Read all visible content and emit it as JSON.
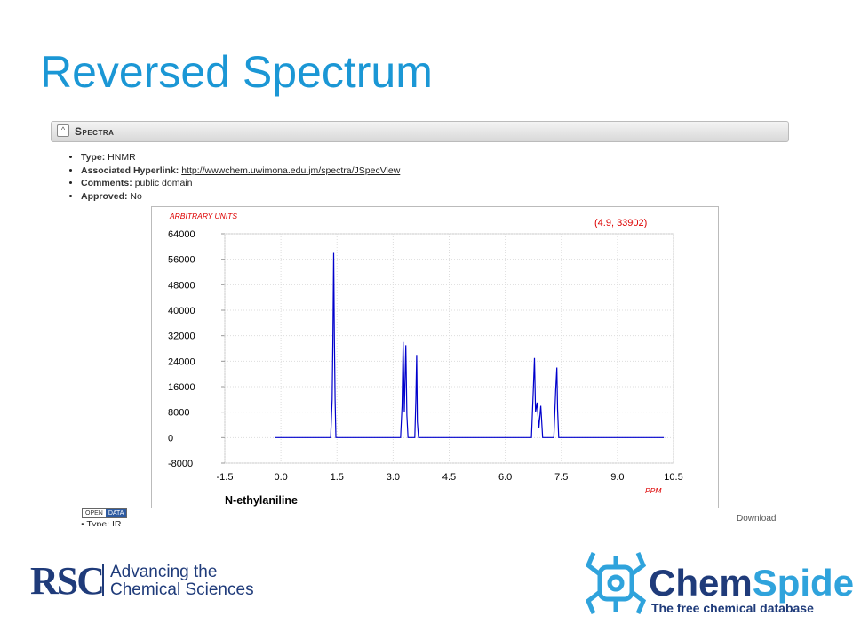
{
  "title": "Reversed Spectrum",
  "panel": {
    "header": "Spectra",
    "fields": [
      {
        "label": "Type:",
        "value": "HNMR"
      },
      {
        "label": "Associated Hyperlink:",
        "value": "http://wwwchem.uwimona.edu.jm/spectra/JSpecView"
      },
      {
        "label": "Comments:",
        "value": "public domain"
      },
      {
        "label": "Approved:",
        "value": "No"
      }
    ],
    "badge": {
      "left": "OPEN",
      "right": "DATA"
    },
    "download": "Download",
    "next_item": "Type: IR"
  },
  "chart_data": {
    "type": "line",
    "y_label": "ARBITRARY UNITS",
    "x_label": "PPM",
    "caption": "N-ethylaniline",
    "annotation": "(4.9, 33902)",
    "color": "#0000cc",
    "grid": true,
    "x": [
      -0.17,
      1.0,
      1.33,
      1.37,
      1.39,
      1.41,
      1.43,
      1.45,
      1.47,
      1.5,
      2.9,
      3.2,
      3.24,
      3.27,
      3.3,
      3.34,
      3.37,
      3.4,
      3.58,
      3.61,
      3.63,
      3.65,
      3.68,
      6.4,
      6.7,
      6.75,
      6.78,
      6.81,
      6.85,
      6.9,
      6.95,
      7.0,
      7.3,
      7.35,
      7.38,
      7.4,
      7.43,
      7.47,
      10.24
    ],
    "values": [
      0,
      0,
      0,
      12000,
      30000,
      58000,
      31000,
      12000,
      0,
      0,
      0,
      0,
      10000,
      30000,
      8000,
      29000,
      7000,
      0,
      0,
      12000,
      26000,
      5000,
      0,
      0,
      0,
      15000,
      25000,
      8000,
      11000,
      3000,
      10000,
      0,
      0,
      15000,
      22000,
      9000,
      0,
      0,
      0
    ],
    "xlim": [
      -1.5,
      10.5
    ],
    "xticks": [
      -1.5,
      {
        "value": 0,
        "label": "0.0"
      },
      1.5,
      {
        "value": 3,
        "label": "3.0"
      },
      4.5,
      {
        "value": 6,
        "label": "6.0"
      },
      7.5,
      {
        "value": 9,
        "label": "9.0"
      },
      10.5
    ],
    "ylim": [
      -8000,
      64000
    ],
    "yticks": [
      -8000,
      0,
      8000,
      16000,
      24000,
      32000,
      40000,
      48000,
      56000,
      64000
    ]
  },
  "footer": {
    "rsc": {
      "mark": "RSC",
      "line1": "Advancing the",
      "line2": "Chemical Sciences"
    },
    "chemspider": {
      "name_a": "Chem",
      "name_b": "Spider",
      "tagline": "The free chemical database"
    }
  }
}
